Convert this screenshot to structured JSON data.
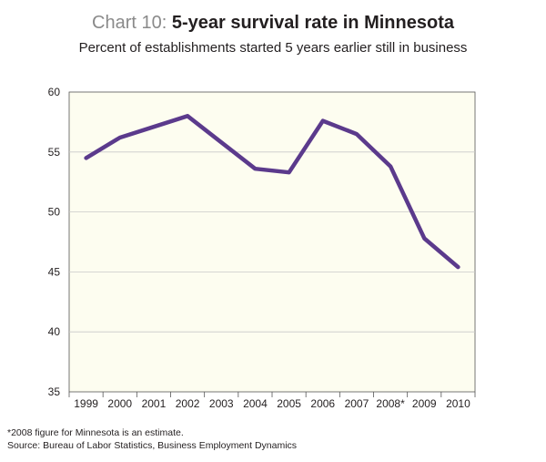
{
  "header": {
    "title_prefix": "Chart 10:",
    "title_main": "5-year survival rate in Minnesota",
    "subtitle": "Percent of establishments started 5 years earlier still in business"
  },
  "chart_data": {
    "type": "line",
    "title": "Chart 10: 5-year survival rate in Minnesota",
    "subtitle": "Percent of establishments started 5 years earlier still in business",
    "categories": [
      "1999",
      "2000",
      "2001",
      "2002",
      "2003",
      "2004",
      "2005",
      "2006",
      "2007",
      "2008*",
      "2009",
      "2010"
    ],
    "series": [
      {
        "values": [
          54.5,
          56.2,
          57.1,
          58.0,
          55.8,
          53.6,
          53.3,
          57.6,
          56.5,
          53.8,
          47.8,
          45.4
        ]
      }
    ],
    "ylim": [
      35,
      60
    ],
    "yticks": [
      35,
      40,
      45,
      50,
      55,
      60
    ],
    "xlabel": "",
    "ylabel": "",
    "grid": true,
    "colors": {
      "line": "#5b3a8c",
      "plot_background": "#fdfdf0",
      "grid": "#c9c9c9",
      "axis": "#555555"
    }
  },
  "footnotes": {
    "note": "*2008 figure for Minnesota is an estimate.",
    "source": "Source: Bureau of Labor Statistics, Business Employment Dynamics"
  }
}
